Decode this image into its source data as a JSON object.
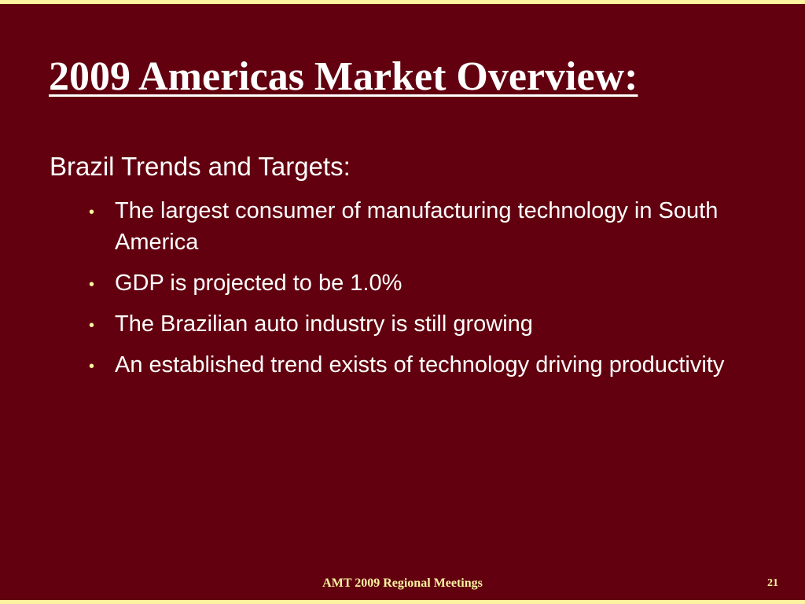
{
  "slide": {
    "title": "2009 Americas Market Overview:",
    "subtitle": "Brazil Trends and Targets:",
    "bullets": [
      {
        "text": "The largest consumer of manufacturing technology in South America"
      },
      {
        "text": "GDP is projected to be 1.0%"
      },
      {
        "text": "The Brazilian auto industry is still growing"
      },
      {
        "text": "An established trend exists of technology driving productivity"
      }
    ],
    "bullet_symbol": "•",
    "footer": "AMT 2009 Regional Meetings",
    "page_number": "21"
  },
  "colors": {
    "background": "#62000f",
    "border": "#fdf3a0",
    "text": "#ffffff",
    "footer_text": "#fdf3a0"
  }
}
